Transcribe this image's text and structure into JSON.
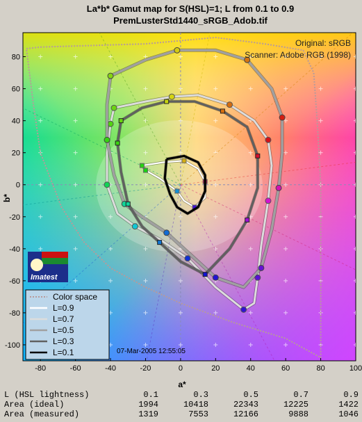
{
  "chart_data": {
    "type": "scatter",
    "title": "La*b* Gamut map for S(HSL)=1; L from 0.1 to 0.9",
    "subtitle": "PremLusterStd1440_sRGB_Adob.tif",
    "xlabel": "a*",
    "ylabel": "b*",
    "xlim": [
      -90,
      100
    ],
    "ylim": [
      -110,
      95
    ],
    "x_ticks": [
      "-80",
      "-60",
      "-40",
      "-20",
      "0",
      "20",
      "40",
      "60",
      "80",
      "100"
    ],
    "y_ticks": [
      "80",
      "60",
      "40",
      "20",
      "0",
      "-20",
      "-40",
      "-60",
      "-80",
      "-100"
    ],
    "grid": true,
    "annotations": [
      "Original: sRGB",
      "Scanner: Adobe RGB (1998)"
    ],
    "date": "07-Mar-2005 12:55:05",
    "logo_text": "Imatest",
    "legend": {
      "placement": "bottom-left",
      "entries": [
        "Color space",
        "L=0.9",
        "L=0.7",
        "L=0.5",
        "L=0.3",
        "L=0.1"
      ],
      "colors": [
        "#b89a9a",
        "#ffffff",
        "#dcdcdc",
        "#a0a0a0",
        "#606060",
        "#000000"
      ]
    },
    "series": [
      {
        "name": "Color space",
        "points": [
          [
            -80,
            86
          ],
          [
            -20,
            88
          ],
          [
            20,
            92
          ],
          [
            48,
            88
          ],
          [
            70,
            84
          ],
          [
            76,
            70
          ],
          [
            78,
            40
          ],
          [
            80,
            0
          ],
          [
            80,
            -40
          ],
          [
            80,
            -80
          ],
          [
            80,
            -108
          ],
          [
            60,
            -96
          ],
          [
            30,
            -86
          ],
          [
            0,
            -74
          ],
          [
            -20,
            -64
          ],
          [
            -40,
            -52
          ],
          [
            -55,
            -36
          ],
          [
            -68,
            -14
          ],
          [
            -80,
            20
          ],
          [
            -84,
            50
          ],
          [
            -88,
            85
          ]
        ]
      },
      {
        "name": "L=0.9",
        "points": [
          [
            -22,
            12
          ],
          [
            -10,
            14
          ],
          [
            2,
            15
          ],
          [
            10,
            10
          ],
          [
            14,
            2
          ],
          [
            14,
            -8
          ],
          [
            8,
            -14
          ],
          [
            2,
            -10
          ],
          [
            -2,
            -4
          ],
          [
            -12,
            4
          ],
          [
            -20,
            9
          ]
        ]
      },
      {
        "name": "L=0.7",
        "points": [
          [
            -38,
            48
          ],
          [
            -20,
            52
          ],
          [
            -5,
            55
          ],
          [
            10,
            56
          ],
          [
            28,
            50
          ],
          [
            42,
            40
          ],
          [
            50,
            28
          ],
          [
            52,
            12
          ],
          [
            50,
            -10
          ],
          [
            46,
            -38
          ],
          [
            44,
            -58
          ],
          [
            42,
            -74
          ],
          [
            36,
            -78
          ],
          [
            20,
            -64
          ],
          [
            4,
            -46
          ],
          [
            -12,
            -34
          ],
          [
            -26,
            -26
          ],
          [
            -36,
            -18
          ],
          [
            -42,
            0
          ],
          [
            -42,
            20
          ],
          [
            -40,
            38
          ]
        ]
      },
      {
        "name": "L=0.5",
        "points": [
          [
            -40,
            68
          ],
          [
            -20,
            78
          ],
          [
            -2,
            84
          ],
          [
            20,
            84
          ],
          [
            38,
            78
          ],
          [
            52,
            60
          ],
          [
            58,
            42
          ],
          [
            58,
            20
          ],
          [
            56,
            -2
          ],
          [
            52,
            -28
          ],
          [
            46,
            -52
          ],
          [
            36,
            -64
          ],
          [
            20,
            -58
          ],
          [
            6,
            -44
          ],
          [
            -8,
            -30
          ],
          [
            -22,
            -20
          ],
          [
            -32,
            -12
          ],
          [
            -38,
            6
          ],
          [
            -42,
            28
          ],
          [
            -42,
            50
          ]
        ]
      },
      {
        "name": "L=0.3",
        "points": [
          [
            -34,
            40
          ],
          [
            -22,
            48
          ],
          [
            -8,
            52
          ],
          [
            8,
            52
          ],
          [
            24,
            46
          ],
          [
            38,
            36
          ],
          [
            44,
            18
          ],
          [
            44,
            -2
          ],
          [
            38,
            -22
          ],
          [
            28,
            -40
          ],
          [
            14,
            -56
          ],
          [
            0,
            -48
          ],
          [
            -12,
            -36
          ],
          [
            -22,
            -26
          ],
          [
            -30,
            -12
          ],
          [
            -34,
            8
          ],
          [
            -36,
            26
          ]
        ]
      },
      {
        "name": "L=0.1",
        "points": [
          [
            -8,
            16
          ],
          [
            2,
            18
          ],
          [
            10,
            14
          ],
          [
            14,
            6
          ],
          [
            14,
            -4
          ],
          [
            10,
            -14
          ],
          [
            4,
            -18
          ],
          [
            -2,
            -14
          ],
          [
            -6,
            -6
          ],
          [
            -9,
            4
          ]
        ]
      }
    ],
    "table": {
      "row_labels": [
        "L (HSL lightness)",
        "Area (ideal)",
        "Area (measured)"
      ],
      "columns": [
        "0.1",
        "0.3",
        "0.5",
        "0.7",
        "0.9"
      ],
      "ideal": [
        "1994",
        "10418",
        "22343",
        "12225",
        "1422"
      ],
      "measured": [
        "1319",
        "7553",
        "12166",
        "9888",
        "1046"
      ]
    }
  }
}
